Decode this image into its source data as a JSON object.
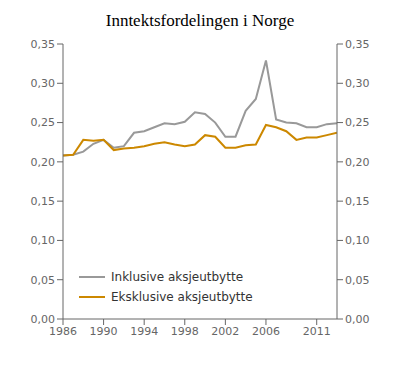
{
  "chart_data": {
    "type": "line",
    "title": "Inntektsfordelingen i Norge",
    "x": [
      1986,
      1987,
      1988,
      1989,
      1990,
      1991,
      1992,
      1993,
      1994,
      1995,
      1996,
      1997,
      1998,
      1999,
      2000,
      2001,
      2002,
      2003,
      2004,
      2005,
      2006,
      2007,
      2008,
      2009,
      2010,
      2011,
      2012,
      2013
    ],
    "series": [
      {
        "name": "Inklusive aksjeutbytte",
        "color": "#999999",
        "values": [
          0.208,
          0.209,
          0.213,
          0.223,
          0.228,
          0.218,
          0.22,
          0.237,
          0.239,
          0.244,
          0.249,
          0.248,
          0.251,
          0.263,
          0.261,
          0.25,
          0.232,
          0.232,
          0.265,
          0.28,
          0.329,
          0.254,
          0.25,
          0.249,
          0.244,
          0.244,
          0.248,
          0.249
        ]
      },
      {
        "name": "Eksklusive aksjeutbytte",
        "color": "#cc8800",
        "values": [
          0.208,
          0.209,
          0.228,
          0.227,
          0.228,
          0.215,
          0.217,
          0.218,
          0.22,
          0.223,
          0.225,
          0.222,
          0.22,
          0.222,
          0.234,
          0.232,
          0.218,
          0.218,
          0.221,
          0.222,
          0.247,
          0.244,
          0.239,
          0.228,
          0.231,
          0.231,
          0.234,
          0.237
        ]
      }
    ],
    "xlim": [
      1986,
      2013
    ],
    "xticks": [
      1986,
      1990,
      1994,
      1998,
      2002,
      2006,
      2011
    ],
    "ylim": [
      0.0,
      0.35
    ],
    "yticks": [
      {
        "value": 0.0,
        "label": "0,00"
      },
      {
        "value": 0.05,
        "label": "0,05"
      },
      {
        "value": 0.1,
        "label": "0,10"
      },
      {
        "value": 0.15,
        "label": "0,15"
      },
      {
        "value": 0.2,
        "label": "0,20"
      },
      {
        "value": 0.25,
        "label": "0,25"
      },
      {
        "value": 0.3,
        "label": "0,30"
      },
      {
        "value": 0.35,
        "label": "0,35"
      }
    ],
    "y2lim": [
      0.0,
      0.35
    ],
    "y2ticks": [
      {
        "value": 0.0,
        "label": "0,00"
      },
      {
        "value": 0.05,
        "label": "0,05"
      },
      {
        "value": 0.1,
        "label": "0,10"
      },
      {
        "value": 0.15,
        "label": "0,15"
      },
      {
        "value": 0.2,
        "label": "0,20"
      },
      {
        "value": 0.25,
        "label": "0,25"
      },
      {
        "value": 0.3,
        "label": "0,30"
      },
      {
        "value": 0.35,
        "label": "0,35"
      }
    ],
    "grid": false,
    "legend": "lower left"
  }
}
